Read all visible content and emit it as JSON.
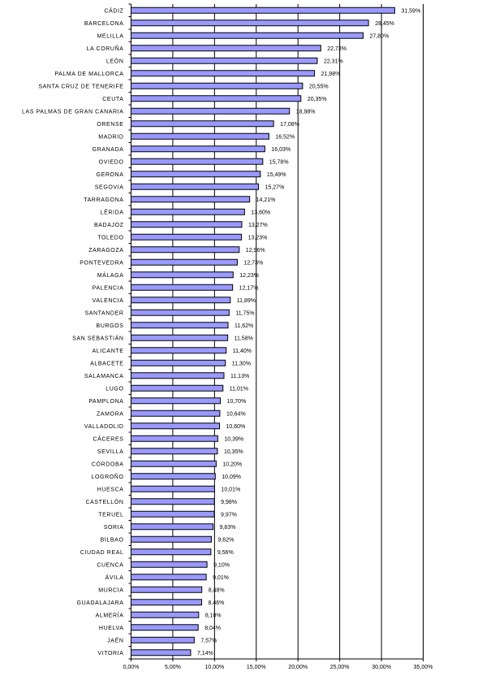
{
  "chart_data": {
    "type": "bar",
    "orientation": "horizontal",
    "title": "",
    "xlabel": "",
    "ylabel": "",
    "xlim": [
      0,
      35
    ],
    "x_ticks": [
      "0,00%",
      "5,00%",
      "10,00%",
      "15,00%",
      "20,00%",
      "25,00%",
      "30,00%",
      "35,00%"
    ],
    "grid": "vertical",
    "bar_color": "#9999ff",
    "categories": [
      "CÁDIZ",
      "BARCELONA",
      "MELILLA",
      "LA CORUÑA",
      "LEÓN",
      "PALMA DE MALLORCA",
      "SANTA CRUZ DE TENERIFE",
      "CEUTA",
      "LAS PALMAS DE GRAN CANARIA",
      "ORENSE",
      "MADRID",
      "GRANADA",
      "OVIEDO",
      "GERONA",
      "SEGOVIA",
      "TARRAGONA",
      "LÉRIDA",
      "BADAJOZ",
      "TOLEDO",
      "ZARAGOZA",
      "PONTEVEDRA",
      "MÁLAGA",
      "PALENCIA",
      "VALENCIA",
      "SANTANDER",
      "BURGOS",
      "SAN SEBASTIÁN",
      "ALICANTE",
      "ALBACETE",
      "SALAMANCA",
      "LUGO",
      "PAMPLONA",
      "ZAMORA",
      "VALLADOLID",
      "CÁCERES",
      "SEVILLA",
      "CÓRDOBA",
      "LOGROÑO",
      "HUESCA",
      "CASTELLÓN",
      "TERUEL",
      "SORIA",
      "BILBAO",
      "CIUDAD REAL",
      "CUENCA",
      "ÁVILA",
      "MURCIA",
      "GUADALAJARA",
      "ALMERÍA",
      "HUELVA",
      "JAÉN",
      "VITORIA"
    ],
    "values": [
      31.59,
      28.45,
      27.8,
      22.73,
      22.31,
      21.98,
      20.55,
      20.35,
      18.98,
      17.08,
      16.52,
      16.03,
      15.78,
      15.49,
      15.27,
      14.21,
      13.6,
      13.27,
      13.23,
      12.96,
      12.73,
      12.23,
      12.17,
      11.89,
      11.75,
      11.62,
      11.58,
      11.4,
      11.3,
      11.13,
      11.01,
      10.7,
      10.64,
      10.6,
      10.39,
      10.35,
      10.2,
      10.09,
      10.01,
      9.98,
      9.97,
      9.83,
      9.62,
      9.56,
      9.1,
      9.01,
      8.48,
      8.46,
      8.1,
      8.04,
      7.57,
      7.14
    ],
    "value_labels": [
      "31,59%",
      "28,45%",
      "27,80%",
      "22,73%",
      "22,31%",
      "21,98%",
      "20,55%",
      "20,35%",
      "18,98%",
      "17,08%",
      "16,52%",
      "16,03%",
      "15,78%",
      "15,49%",
      "15,27%",
      "14,21%",
      "13,60%",
      "13,27%",
      "13,23%",
      "12,96%",
      "12,73%",
      "12,23%",
      "12,17%",
      "11,89%",
      "11,75%",
      "11,62%",
      "11,58%",
      "11,40%",
      "11,30%",
      "11,13%",
      "11,01%",
      "10,70%",
      "10,64%",
      "10,60%",
      "10,39%",
      "10,35%",
      "10,20%",
      "10,09%",
      "10,01%",
      "9,98%",
      "9,97%",
      "9,83%",
      "9,62%",
      "9,56%",
      "9,10%",
      "9,01%",
      "8,48%",
      "8,46%",
      "8,10%",
      "8,04%",
      "7,57%",
      "7,14%"
    ]
  }
}
